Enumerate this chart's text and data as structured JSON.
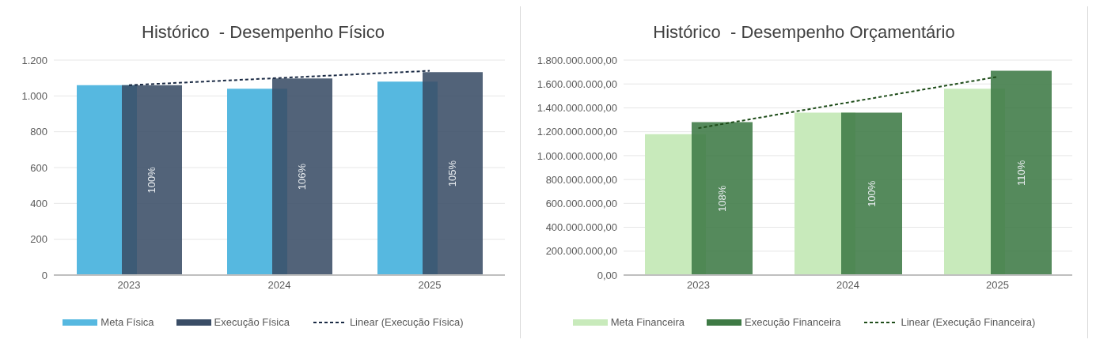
{
  "chart_data": [
    {
      "type": "bar",
      "title": "Histórico  - Desempenho Físico",
      "categories": [
        "2023",
        "2024",
        "2025"
      ],
      "series": [
        {
          "name": "Meta Física",
          "color": "#56b8e0",
          "values": [
            1060,
            1040,
            1080
          ]
        },
        {
          "name": "Execução Física",
          "color": "#3a4d66",
          "values": [
            1060,
            1097,
            1133
          ]
        },
        {
          "name": "Linear (Execução Física)",
          "type": "line",
          "color": "#1a2a44",
          "line_style": "dashed",
          "values": [
            1060,
            1100,
            1140
          ]
        }
      ],
      "annotations": [
        "100%",
        "106%",
        "105%"
      ],
      "ylim": [
        0,
        1200
      ],
      "yticks": [
        {
          "value": 0,
          "label": "0"
        },
        {
          "value": 200,
          "label": "200"
        },
        {
          "value": 400,
          "label": "400"
        },
        {
          "value": 600,
          "label": "600"
        },
        {
          "value": 800,
          "label": "800"
        },
        {
          "value": 1000,
          "label": "1.000"
        },
        {
          "value": 1200,
          "label": "1.200"
        }
      ],
      "grid": "y",
      "legend": "bottom"
    },
    {
      "type": "bar",
      "title": "Histórico  - Desempenho Orçamentário",
      "categories": [
        "2023",
        "2024",
        "2025"
      ],
      "series": [
        {
          "name": "Meta Financeira",
          "color": "#c8eabb",
          "values": [
            1180000000,
            1360000000,
            1560000000
          ]
        },
        {
          "name": "Execução Financeira",
          "color": "#3e7a45",
          "values": [
            1280000000,
            1360000000,
            1710000000
          ]
        },
        {
          "name": "Linear (Execução Financeira)",
          "type": "line",
          "color": "#1f4d1a",
          "line_style": "dashed",
          "values": [
            1230000000,
            1445000000,
            1660000000
          ]
        }
      ],
      "annotations": [
        "108%",
        "100%",
        "110%"
      ],
      "ylim": [
        0,
        1800000000
      ],
      "yticks": [
        {
          "value": 0,
          "label": "0,00"
        },
        {
          "value": 200000000,
          "label": "200.000.000,00"
        },
        {
          "value": 400000000,
          "label": "400.000.000,00"
        },
        {
          "value": 600000000,
          "label": "600.000.000,00"
        },
        {
          "value": 800000000,
          "label": "800.000.000,00"
        },
        {
          "value": 1000000000,
          "label": "1.000.000.000,00"
        },
        {
          "value": 1200000000,
          "label": "1.200.000.000,00"
        },
        {
          "value": 1400000000,
          "label": "1.400.000.000,00"
        },
        {
          "value": 1600000000,
          "label": "1.600.000.000,00"
        },
        {
          "value": 1800000000,
          "label": "1.800.000.000,00"
        }
      ],
      "grid": "y",
      "legend": "bottom"
    }
  ]
}
